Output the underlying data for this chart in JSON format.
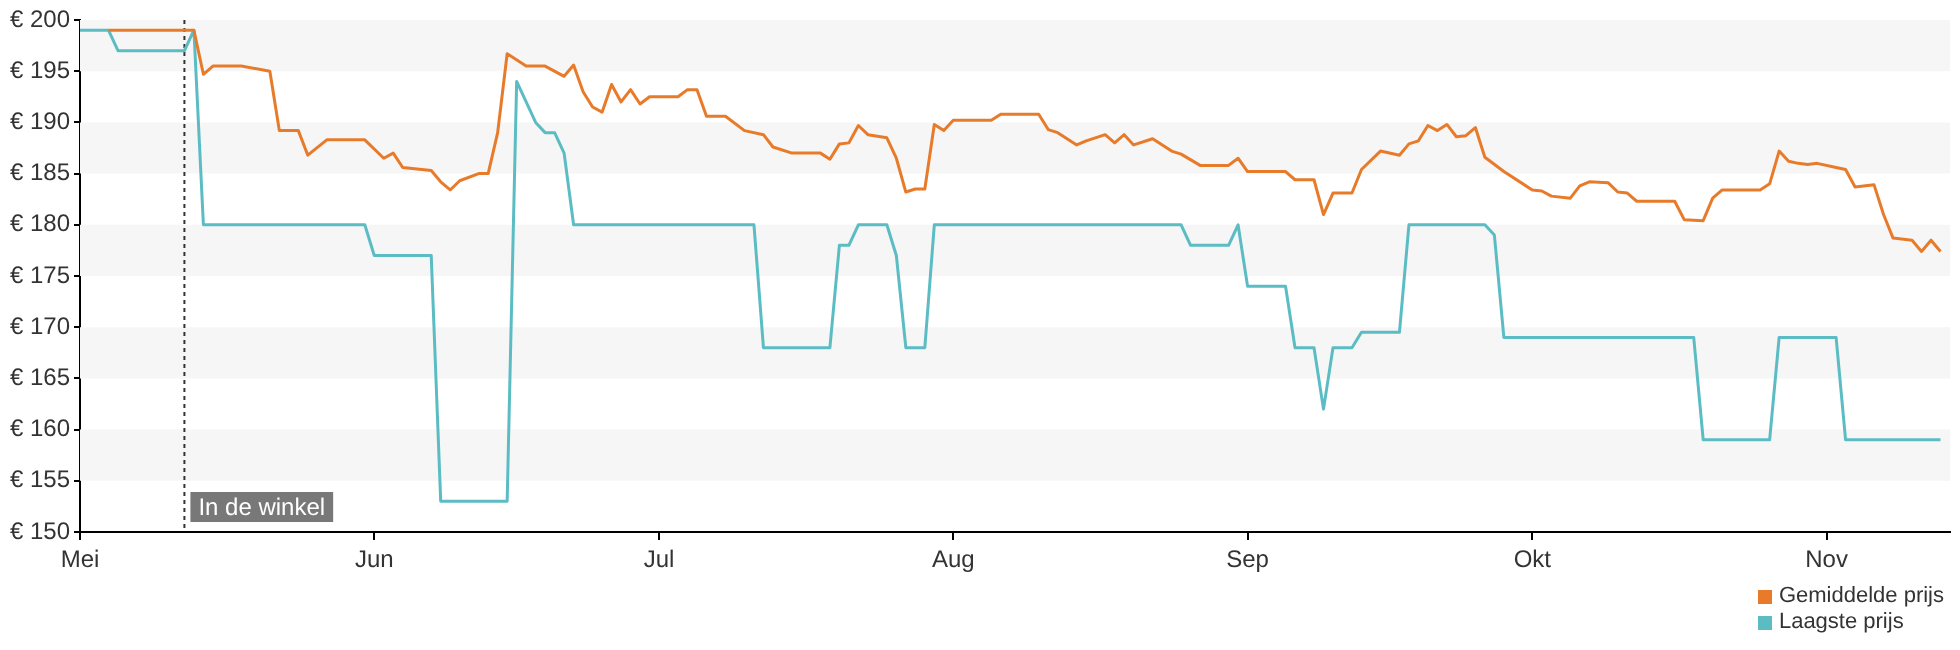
{
  "chart_data": {
    "type": "line",
    "ylim": [
      150,
      200
    ],
    "yticks": [
      {
        "value": 150,
        "label": "€ 150"
      },
      {
        "value": 155,
        "label": "€ 155"
      },
      {
        "value": 160,
        "label": "€ 160"
      },
      {
        "value": 165,
        "label": "€ 165"
      },
      {
        "value": 170,
        "label": "€ 170"
      },
      {
        "value": 175,
        "label": "€ 175"
      },
      {
        "value": 180,
        "label": "€ 180"
      },
      {
        "value": 185,
        "label": "€ 185"
      },
      {
        "value": 190,
        "label": "€ 190"
      },
      {
        "value": 195,
        "label": "€ 195"
      },
      {
        "value": 200,
        "label": "€ 200"
      }
    ],
    "xlim": [
      "--05-01",
      "--11-14"
    ],
    "xticks": [
      {
        "value": "--05-01",
        "label": "Mei"
      },
      {
        "value": "--06-01",
        "label": "Jun"
      },
      {
        "value": "--07-01",
        "label": "Jul"
      },
      {
        "value": "--08-01",
        "label": "Aug"
      },
      {
        "value": "--09-01",
        "label": "Sep"
      },
      {
        "value": "--10-01",
        "label": "Okt"
      },
      {
        "value": "--11-01",
        "label": "Nov"
      }
    ],
    "legend": "bottom right",
    "marker": "none",
    "line_style": "solid",
    "ref_lines": [
      {
        "axis": "x",
        "value": "--05-12",
        "label": "In de winkel",
        "line_style": "dotted",
        "color": "#333333"
      }
    ],
    "series": [
      {
        "name": "Gemiddelde prijs",
        "color": "#e87b2a",
        "x": [
          "--05-04",
          "--05-13",
          "--05-14",
          "--05-15",
          "--05-18",
          "--05-21",
          "--05-22",
          "--05-24",
          "--05-25",
          "--05-27",
          "--05-31",
          "--06-02",
          "--06-03",
          "--06-04",
          "--06-07",
          "--06-08",
          "--06-09",
          "--06-10",
          "--06-12",
          "--06-13",
          "--06-14",
          "--06-15",
          "--06-17",
          "--06-19",
          "--06-21",
          "--06-22",
          "--06-23",
          "--06-24",
          "--06-25",
          "--06-26",
          "--06-27",
          "--06-28",
          "--06-29",
          "--06-30",
          "--07-03",
          "--07-04",
          "--07-05",
          "--07-06",
          "--07-08",
          "--07-10",
          "--07-12",
          "--07-13",
          "--07-15",
          "--07-18",
          "--07-19",
          "--07-20",
          "--07-21",
          "--07-22",
          "--07-23",
          "--07-25",
          "--07-26",
          "--07-27",
          "--07-28",
          "--07-29",
          "--07-30",
          "--07-31",
          "--08-01",
          "--08-05",
          "--08-06",
          "--08-10",
          "--08-11",
          "--08-12",
          "--08-14",
          "--08-15",
          "--08-17",
          "--08-18",
          "--08-19",
          "--08-20",
          "--08-22",
          "--08-24",
          "--08-25",
          "--08-27",
          "--08-30",
          "--08-31",
          "--09-01",
          "--09-05",
          "--09-06",
          "--09-08",
          "--09-09",
          "--09-10",
          "--09-12",
          "--09-13",
          "--09-15",
          "--09-17",
          "--09-18",
          "--09-19",
          "--09-20",
          "--09-21",
          "--09-22",
          "--09-23",
          "--09-24",
          "--09-25",
          "--09-26",
          "--09-28",
          "--10-01",
          "--10-02",
          "--10-03",
          "--10-05",
          "--10-06",
          "--10-07",
          "--10-09",
          "--10-10",
          "--10-11",
          "--10-12",
          "--10-16",
          "--10-17",
          "--10-19",
          "--10-20",
          "--10-21",
          "--10-25",
          "--10-26",
          "--10-27",
          "--10-28",
          "--10-29",
          "--10-30",
          "--10-31",
          "--11-02",
          "--11-03",
          "--11-04",
          "--11-06",
          "--11-07",
          "--11-08",
          "--11-10",
          "--11-11",
          "--11-12",
          "--11-13"
        ],
        "values": [
          199,
          199,
          194.7,
          195.5,
          195.5,
          195,
          189.2,
          189.2,
          186.8,
          188.3,
          188.3,
          186.5,
          187,
          185.6,
          185.3,
          184.2,
          183.4,
          184.3,
          185,
          185,
          189,
          196.7,
          195.5,
          195.5,
          194.5,
          195.6,
          193,
          191.5,
          191,
          193.7,
          192,
          193.2,
          191.8,
          192.5,
          192.5,
          193.2,
          193.2,
          190.6,
          190.6,
          189.2,
          188.8,
          187.6,
          187,
          187,
          186.4,
          187.9,
          188,
          189.7,
          188.8,
          188.5,
          186.5,
          183.2,
          183.5,
          183.5,
          189.8,
          189.2,
          190.2,
          190.2,
          190.8,
          190.8,
          189.3,
          189,
          187.8,
          188.2,
          188.8,
          188,
          188.8,
          187.8,
          188.4,
          187.2,
          186.9,
          185.8,
          185.8,
          186.5,
          185.2,
          185.2,
          184.4,
          184.4,
          181,
          183.1,
          183.1,
          185.4,
          187.2,
          186.8,
          187.9,
          188.2,
          189.7,
          189.2,
          189.8,
          188.6,
          188.7,
          189.5,
          186.6,
          185.2,
          183.4,
          183.3,
          182.8,
          182.6,
          183.8,
          184.2,
          184.1,
          183.2,
          183.1,
          182.3,
          182.3,
          180.5,
          180.4,
          182.6,
          183.4,
          183.4,
          184,
          187.2,
          186.2,
          186,
          185.9,
          186,
          185.6,
          185.4,
          183.7,
          183.9,
          181,
          178.7,
          178.5,
          177.4,
          178.5,
          177.4
        ]
      },
      {
        "name": "Laagste prijs",
        "color": "#5bbcc4",
        "x": [
          "--05-01",
          "--05-04",
          "--05-05",
          "--05-12",
          "--05-13",
          "--05-14",
          "--05-31",
          "--06-01",
          "--06-07",
          "--06-08",
          "--06-15",
          "--06-16",
          "--06-18",
          "--06-19",
          "--06-20",
          "--06-21",
          "--06-22",
          "--07-11",
          "--07-12",
          "--07-19",
          "--07-20",
          "--07-21",
          "--07-22",
          "--07-25",
          "--07-26",
          "--07-27",
          "--07-29",
          "--07-30",
          "--08-25",
          "--08-26",
          "--08-30",
          "--08-31",
          "--09-01",
          "--09-05",
          "--09-06",
          "--09-08",
          "--09-09",
          "--09-10",
          "--09-12",
          "--09-13",
          "--09-17",
          "--09-18",
          "--09-26",
          "--09-27",
          "--09-28",
          "--10-18",
          "--10-19",
          "--10-26",
          "--10-27",
          "--11-02",
          "--11-03",
          "--11-13"
        ],
        "values": [
          199,
          199,
          197,
          197,
          199,
          180,
          180,
          177,
          177,
          153,
          153,
          194,
          190,
          189,
          189,
          187,
          180,
          180,
          168,
          168,
          178,
          178,
          180,
          180,
          177,
          168,
          168,
          180,
          180,
          178,
          178,
          180,
          174,
          174,
          168,
          168,
          162,
          168,
          168,
          169.5,
          169.5,
          180,
          180,
          179,
          169,
          169,
          159,
          159,
          169,
          169,
          159,
          159
        ]
      }
    ]
  }
}
